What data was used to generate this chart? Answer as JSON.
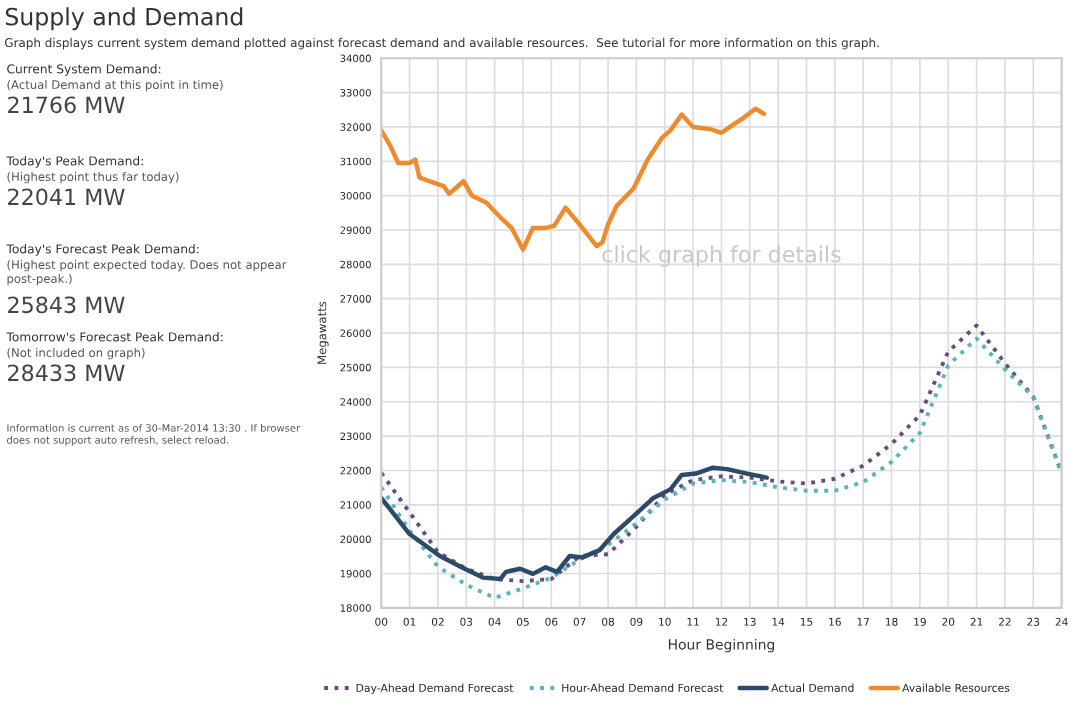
{
  "chart_data": {
    "type": "line",
    "title": "Supply and Demand",
    "subtitle": "Graph displays current system demand plotted against forecast demand and available resources.  See tutorial for more information on this graph.",
    "xlabel": "Hour Beginning",
    "ylabel": "Megawatts",
    "annotations": [
      "Current System Demand:",
      "(Actual Demand at this point in time)",
      "21766 MW",
      "Today's Peak Demand:",
      "(Highest point thus far today)",
      "22041 MW",
      "Today's Forecast Peak Demand:",
      "(Highest point expected today. Does not appear\npost-peak.)",
      "25843 MW",
      "Tomorrow's Forecast Peak Demand:",
      "(Not included on graph)",
      "28433 MW",
      "Information is current as of 30-Mar-2014 13:30 . If browser\ndoes not support auto refresh, select reload.",
      "click graph for details"
    ],
    "series": [
      {
        "name": "Day-Ahead Demand Forecast",
        "color": "#6b4c7e",
        "line_style": "dotted",
        "x": [
          0,
          1,
          2,
          3,
          4,
          5,
          6,
          7,
          8,
          9,
          10,
          11,
          12,
          13,
          14,
          15,
          16,
          17,
          18,
          19,
          20,
          21,
          22,
          23,
          24
        ],
        "values": [
          21930,
          20780,
          19620,
          19140,
          18840,
          18780,
          18840,
          19510,
          19560,
          20360,
          21300,
          21720,
          21830,
          21790,
          21680,
          21620,
          21760,
          22140,
          22770,
          23610,
          25460,
          26220,
          25120,
          24140,
          21930
        ]
      },
      {
        "name": "Hour-Ahead Demand Forecast",
        "color": "#5bb5b5",
        "line_style": "dotted",
        "x": [
          0,
          1,
          2,
          3,
          4,
          5,
          6,
          7,
          8,
          9,
          10,
          11,
          12,
          13,
          14,
          15,
          16,
          17,
          18,
          19,
          20,
          21,
          22,
          23,
          24
        ],
        "values": [
          21510,
          20250,
          19200,
          18670,
          18290,
          18570,
          18880,
          19410,
          19830,
          20460,
          21150,
          21620,
          21720,
          21660,
          21510,
          21410,
          21410,
          21660,
          22250,
          23090,
          25060,
          25840,
          24940,
          24140,
          21930
        ]
      },
      {
        "name": "Actual Demand",
        "color": "#2e4a6b",
        "line_style": "solid",
        "x": [
          0,
          1.0,
          2.07,
          2.8,
          3.6,
          4.2,
          4.4,
          4.9,
          5.35,
          5.8,
          6.2,
          6.65,
          7.1,
          7.7,
          8.2,
          8.9,
          9.6,
          10.2,
          10.6,
          11.1,
          11.7,
          12.2,
          12.9,
          13.6
        ],
        "values": [
          21200,
          20150,
          19510,
          19200,
          18880,
          18840,
          19050,
          19140,
          18990,
          19180,
          19050,
          19510,
          19470,
          19680,
          20150,
          20670,
          21200,
          21450,
          21870,
          21910,
          22080,
          22040,
          21910,
          21790
        ]
      },
      {
        "name": "Available Resources",
        "color": "#f08a2e",
        "line_style": "solid",
        "x": [
          0,
          0.3,
          0.6,
          1.0,
          1.2,
          1.35,
          1.7,
          2.2,
          2.4,
          2.9,
          3.2,
          3.7,
          4.2,
          4.6,
          5.0,
          5.35,
          5.8,
          6.1,
          6.5,
          7.0,
          7.6,
          7.8,
          8.0,
          8.3,
          8.9,
          9.4,
          9.9,
          10.2,
          10.6,
          11.0,
          11.6,
          12.0,
          12.3,
          12.8,
          13.2,
          13.5
        ],
        "values": [
          31900,
          31480,
          30950,
          30950,
          31050,
          30530,
          30420,
          30280,
          30050,
          30420,
          30000,
          29800,
          29370,
          29060,
          28430,
          29060,
          29060,
          29120,
          29650,
          29160,
          28530,
          28640,
          29160,
          29700,
          30210,
          31050,
          31680,
          31900,
          32360,
          32000,
          31940,
          31830,
          32000,
          32280,
          32530,
          32380
        ]
      }
    ],
    "xlim": [
      0,
      24
    ],
    "xticks": [
      {
        "value": 0,
        "label": "00"
      },
      {
        "value": 1,
        "label": "01"
      },
      {
        "value": 2,
        "label": "02"
      },
      {
        "value": 3,
        "label": "03"
      },
      {
        "value": 4,
        "label": "04"
      },
      {
        "value": 5,
        "label": "05"
      },
      {
        "value": 6,
        "label": "06"
      },
      {
        "value": 7,
        "label": "07"
      },
      {
        "value": 8,
        "label": "08"
      },
      {
        "value": 9,
        "label": "09"
      },
      {
        "value": 10,
        "label": "10"
      },
      {
        "value": 11,
        "label": "11"
      },
      {
        "value": 12,
        "label": "12"
      },
      {
        "value": 13,
        "label": "13"
      },
      {
        "value": 14,
        "label": "14"
      },
      {
        "value": 15,
        "label": "15"
      },
      {
        "value": 16,
        "label": "16"
      },
      {
        "value": 17,
        "label": "17"
      },
      {
        "value": 18,
        "label": "18"
      },
      {
        "value": 19,
        "label": "19"
      },
      {
        "value": 20,
        "label": "20"
      },
      {
        "value": 21,
        "label": "21"
      },
      {
        "value": 22,
        "label": "22"
      },
      {
        "value": 23,
        "label": "23"
      },
      {
        "value": 24,
        "label": "24"
      }
    ],
    "ylim": [
      18000,
      34000
    ],
    "yticks": [
      18000,
      19000,
      20000,
      21000,
      22000,
      23000,
      24000,
      25000,
      26000,
      27000,
      28000,
      29000,
      30000,
      31000,
      32000,
      33000,
      34000
    ],
    "grid": true,
    "legend": "bottom",
    "marker": "none"
  }
}
